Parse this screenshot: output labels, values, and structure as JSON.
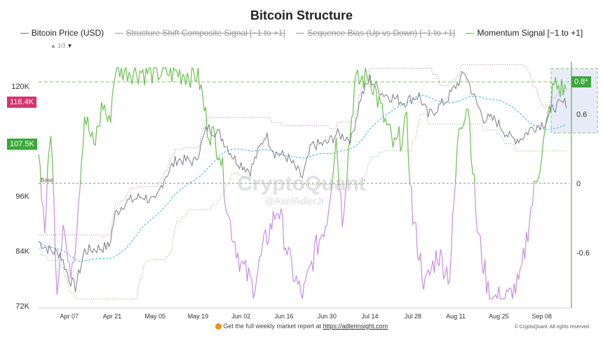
{
  "chart_data": {
    "type": "line",
    "title": "Bitcoin Structure",
    "legend": [
      {
        "name": "Bitcoin Price (USD)",
        "color": "#888888",
        "active": true
      },
      {
        "name": "Structure Shift Composite Signal [−1 to +1]",
        "color": "#999999",
        "active": false
      },
      {
        "name": "Sequence Bias (Up vs Down) [−1 to +1]",
        "color": "#999999",
        "active": false
      },
      {
        "name": "Momentum Signal [−1 to +1]",
        "color": "#6cbf4f",
        "active": true
      }
    ],
    "legend_page": "1/3",
    "legend_placement": "top",
    "x_ticks": [
      "Apr 07",
      "Apr 21",
      "May 05",
      "May 19",
      "Jun 02",
      "Jun 16",
      "Jun 30",
      "Jul 14",
      "Jul 28",
      "Aug 11",
      "Aug 25",
      "Sep 08"
    ],
    "x_range": [
      "2025-03-28",
      "2025-09-17"
    ],
    "y_left": {
      "ticks": [
        "120K",
        "96K",
        "84K",
        "72K"
      ],
      "range": [
        70000,
        126000
      ]
    },
    "y_right": {
      "ticks": [
        "0.6",
        "0",
        "-0.6"
      ],
      "range": [
        -1.05,
        1.05
      ]
    },
    "badges": {
      "price_high": "116.4K",
      "price_low": "107.5K",
      "momentum": "0.8*"
    },
    "base_label": "Base",
    "colors": {
      "price": "#7a7a8a",
      "ma": "#3fb6d6",
      "momentum_pos": "#6cbf4f",
      "momentum_neg": "#c98ee0",
      "band": "#b07a9a",
      "band_low": "#88b070",
      "pink": "#d6336c",
      "green": "#3aa83a"
    },
    "price": [
      [
        "2025-03-28",
        86000
      ],
      [
        "2025-04-01",
        84000
      ],
      [
        "2025-04-04",
        83500
      ],
      [
        "2025-04-07",
        78000
      ],
      [
        "2025-04-09",
        76000
      ],
      [
        "2025-04-12",
        84000
      ],
      [
        "2025-04-16",
        84500
      ],
      [
        "2025-04-20",
        85000
      ],
      [
        "2025-04-22",
        92000
      ],
      [
        "2025-04-25",
        94500
      ],
      [
        "2025-05-01",
        96000
      ],
      [
        "2025-05-05",
        94500
      ],
      [
        "2025-05-08",
        100000
      ],
      [
        "2025-05-12",
        104000
      ],
      [
        "2025-05-18",
        103500
      ],
      [
        "2025-05-22",
        111000
      ],
      [
        "2025-05-26",
        109500
      ],
      [
        "2025-05-31",
        104000
      ],
      [
        "2025-06-05",
        101500
      ],
      [
        "2025-06-10",
        109500
      ],
      [
        "2025-06-13",
        105500
      ],
      [
        "2025-06-17",
        104500
      ],
      [
        "2025-06-22",
        100000
      ],
      [
        "2025-06-25",
        107000
      ],
      [
        "2025-06-30",
        107500
      ],
      [
        "2025-07-03",
        109500
      ],
      [
        "2025-07-08",
        108500
      ],
      [
        "2025-07-11",
        117500
      ],
      [
        "2025-07-14",
        121500
      ],
      [
        "2025-07-18",
        118500
      ],
      [
        "2025-07-25",
        116500
      ],
      [
        "2025-07-30",
        118000
      ],
      [
        "2025-08-02",
        113500
      ],
      [
        "2025-08-08",
        117000
      ],
      [
        "2025-08-14",
        123000
      ],
      [
        "2025-08-17",
        117500
      ],
      [
        "2025-08-20",
        113000
      ],
      [
        "2025-08-24",
        112500
      ],
      [
        "2025-08-29",
        108500
      ],
      [
        "2025-09-01",
        108500
      ],
      [
        "2025-09-05",
        111000
      ],
      [
        "2025-09-09",
        112000
      ],
      [
        "2025-09-12",
        115500
      ],
      [
        "2025-09-16",
        116400
      ]
    ],
    "momentum": [
      [
        "2025-03-28",
        0.3
      ],
      [
        "2025-03-30",
        -0.4
      ],
      [
        "2025-04-01",
        0.5
      ],
      [
        "2025-04-03",
        -0.9
      ],
      [
        "2025-04-05",
        -0.3
      ],
      [
        "2025-04-07",
        -0.8
      ],
      [
        "2025-04-09",
        -0.5
      ],
      [
        "2025-04-12",
        0.6
      ],
      [
        "2025-04-15",
        0.3
      ],
      [
        "2025-04-18",
        0.7
      ],
      [
        "2025-04-20",
        0.5
      ],
      [
        "2025-04-22",
        1.0
      ],
      [
        "2025-05-01",
        0.97
      ],
      [
        "2025-05-10",
        0.96
      ],
      [
        "2025-05-19",
        0.95
      ],
      [
        "2025-05-22",
        0.5
      ],
      [
        "2025-05-26",
        0.3
      ],
      [
        "2025-05-29",
        -0.3
      ],
      [
        "2025-06-02",
        -0.7
      ],
      [
        "2025-06-06",
        -0.9
      ],
      [
        "2025-06-10",
        -0.5
      ],
      [
        "2025-06-14",
        -0.2
      ],
      [
        "2025-06-18",
        -0.7
      ],
      [
        "2025-06-22",
        -1.0
      ],
      [
        "2025-06-26",
        -0.6
      ],
      [
        "2025-06-30",
        -0.3
      ],
      [
        "2025-07-03",
        0.4
      ],
      [
        "2025-07-05",
        -0.3
      ],
      [
        "2025-07-09",
        0.85
      ],
      [
        "2025-07-14",
        0.95
      ],
      [
        "2025-07-18",
        0.6
      ],
      [
        "2025-07-22",
        0.3
      ],
      [
        "2025-07-26",
        0.5
      ],
      [
        "2025-07-28",
        -0.3
      ],
      [
        "2025-08-01",
        -0.9
      ],
      [
        "2025-08-05",
        -0.6
      ],
      [
        "2025-08-09",
        -0.8
      ],
      [
        "2025-08-12",
        0.5
      ],
      [
        "2025-08-15",
        0.7
      ],
      [
        "2025-08-18",
        -0.4
      ],
      [
        "2025-08-22",
        -1.0
      ],
      [
        "2025-08-28",
        -1.0
      ],
      [
        "2025-09-01",
        -0.85
      ],
      [
        "2025-09-04",
        -0.3
      ],
      [
        "2025-09-06",
        0.0
      ],
      [
        "2025-09-09",
        0.4
      ],
      [
        "2025-09-12",
        0.85
      ],
      [
        "2025-09-16",
        0.8
      ]
    ]
  },
  "watermark": {
    "brand": "CryptoQuant",
    "handle": "@AxelAdlerJr"
  },
  "footer": {
    "text": "Get the full weekly market report at",
    "link": "https://adlerinsight.com",
    "copyright": "© CryptoQuant. All rights reserved"
  }
}
